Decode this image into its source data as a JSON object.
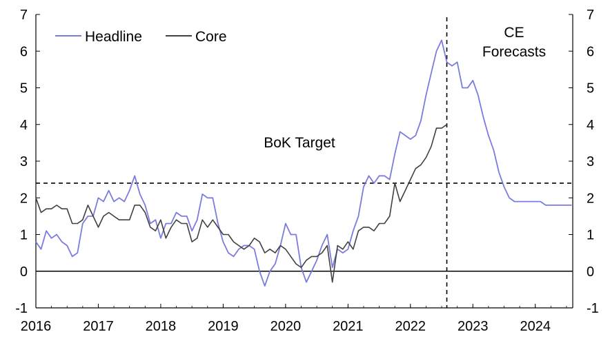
{
  "chart_data": {
    "type": "line",
    "xlim": [
      2016,
      2024.6
    ],
    "ylim": [
      -1,
      7
    ],
    "y_ticks": [
      -1,
      0,
      1,
      2,
      3,
      4,
      5,
      6,
      7
    ],
    "x_ticks": [
      "2016",
      "2017",
      "2018",
      "2019",
      "2020",
      "2021",
      "2022",
      "2023",
      "2024"
    ],
    "grid": false,
    "legend_position": "top-left",
    "colors": {
      "headline": "#7b7bdf",
      "core": "#404040",
      "axis": "#000000"
    },
    "series": [
      {
        "name": "Headline",
        "color": "#7b7bdf",
        "x": [
          2016.0,
          2016.083,
          2016.167,
          2016.25,
          2016.333,
          2016.417,
          2016.5,
          2016.583,
          2016.667,
          2016.75,
          2016.833,
          2016.917,
          2017.0,
          2017.083,
          2017.167,
          2017.25,
          2017.333,
          2017.417,
          2017.5,
          2017.583,
          2017.667,
          2017.75,
          2017.833,
          2017.917,
          2018.0,
          2018.083,
          2018.167,
          2018.25,
          2018.333,
          2018.417,
          2018.5,
          2018.583,
          2018.667,
          2018.75,
          2018.833,
          2018.917,
          2019.0,
          2019.083,
          2019.167,
          2019.25,
          2019.333,
          2019.417,
          2019.5,
          2019.583,
          2019.667,
          2019.75,
          2019.833,
          2019.917,
          2020.0,
          2020.083,
          2020.167,
          2020.25,
          2020.333,
          2020.417,
          2020.5,
          2020.583,
          2020.667,
          2020.75,
          2020.833,
          2020.917,
          2021.0,
          2021.083,
          2021.167,
          2021.25,
          2021.333,
          2021.417,
          2021.5,
          2021.583,
          2021.667,
          2021.75,
          2021.833,
          2021.917,
          2022.0,
          2022.083,
          2022.167,
          2022.25,
          2022.333,
          2022.417,
          2022.5,
          2022.583,
          2022.667,
          2022.75,
          2022.833,
          2022.917,
          2023.0,
          2023.083,
          2023.167,
          2023.25,
          2023.333,
          2023.417,
          2023.5,
          2023.583,
          2023.667,
          2023.75,
          2023.833,
          2023.917,
          2024.0,
          2024.083,
          2024.167,
          2024.25,
          2024.333,
          2024.417,
          2024.5,
          2024.583
        ],
        "values": [
          0.8,
          0.6,
          1.1,
          0.9,
          1.0,
          0.8,
          0.7,
          0.4,
          0.5,
          1.3,
          1.5,
          1.5,
          2.0,
          1.9,
          2.2,
          1.9,
          2.0,
          1.9,
          2.2,
          2.6,
          2.1,
          1.8,
          1.3,
          1.4,
          0.9,
          1.3,
          1.3,
          1.6,
          1.5,
          1.5,
          1.1,
          1.4,
          2.1,
          2.0,
          2.0,
          1.3,
          0.8,
          0.5,
          0.4,
          0.6,
          0.7,
          0.7,
          0.6,
          0.0,
          -0.4,
          0.0,
          0.2,
          0.7,
          1.3,
          1.0,
          1.0,
          0.1,
          -0.3,
          0.0,
          0.3,
          0.7,
          1.0,
          0.1,
          0.6,
          0.5,
          0.6,
          1.1,
          1.5,
          2.3,
          2.6,
          2.4,
          2.6,
          2.6,
          2.5,
          3.2,
          3.8,
          3.7,
          3.6,
          3.7,
          4.1,
          4.8,
          5.4,
          6.0,
          6.3,
          5.7,
          5.6,
          5.7,
          5.0,
          5.0,
          5.2,
          4.8,
          4.2,
          3.7,
          3.3,
          2.7,
          2.3,
          2.0,
          1.9,
          1.9,
          1.9,
          1.9,
          1.9,
          1.9,
          1.8,
          1.8,
          1.8,
          1.8,
          1.8,
          1.8
        ]
      },
      {
        "name": "Core",
        "color": "#404040",
        "x": [
          2016.0,
          2016.083,
          2016.167,
          2016.25,
          2016.333,
          2016.417,
          2016.5,
          2016.583,
          2016.667,
          2016.75,
          2016.833,
          2016.917,
          2017.0,
          2017.083,
          2017.167,
          2017.25,
          2017.333,
          2017.417,
          2017.5,
          2017.583,
          2017.667,
          2017.75,
          2017.833,
          2017.917,
          2018.0,
          2018.083,
          2018.167,
          2018.25,
          2018.333,
          2018.417,
          2018.5,
          2018.583,
          2018.667,
          2018.75,
          2018.833,
          2018.917,
          2019.0,
          2019.083,
          2019.167,
          2019.25,
          2019.333,
          2019.417,
          2019.5,
          2019.583,
          2019.667,
          2019.75,
          2019.833,
          2019.917,
          2020.0,
          2020.083,
          2020.167,
          2020.25,
          2020.333,
          2020.417,
          2020.5,
          2020.583,
          2020.667,
          2020.75,
          2020.833,
          2020.917,
          2021.0,
          2021.083,
          2021.167,
          2021.25,
          2021.333,
          2021.417,
          2021.5,
          2021.583,
          2021.667,
          2021.75,
          2021.833,
          2021.917,
          2022.0,
          2022.083,
          2022.167,
          2022.25,
          2022.333,
          2022.417,
          2022.5,
          2022.583
        ],
        "values": [
          2.0,
          1.6,
          1.7,
          1.7,
          1.8,
          1.7,
          1.7,
          1.3,
          1.3,
          1.4,
          1.8,
          1.5,
          1.2,
          1.5,
          1.6,
          1.5,
          1.4,
          1.4,
          1.4,
          1.8,
          1.8,
          1.6,
          1.2,
          1.1,
          1.4,
          0.9,
          1.2,
          1.4,
          1.3,
          1.3,
          0.8,
          0.9,
          1.4,
          1.2,
          1.4,
          1.2,
          1.0,
          1.0,
          0.8,
          0.7,
          0.6,
          0.7,
          0.9,
          0.8,
          0.5,
          0.6,
          0.5,
          0.7,
          0.6,
          0.4,
          0.2,
          0.1,
          0.3,
          0.4,
          0.4,
          0.5,
          0.7,
          -0.3,
          0.7,
          0.6,
          0.8,
          0.6,
          1.1,
          1.2,
          1.2,
          1.1,
          1.3,
          1.3,
          1.5,
          2.4,
          1.9,
          2.2,
          2.5,
          2.8,
          2.9,
          3.1,
          3.4,
          3.9,
          3.9,
          4.0
        ]
      }
    ],
    "reference_lines": [
      {
        "type": "horizontal",
        "y": 2.4,
        "style": "dashed",
        "label": "BoK Target"
      },
      {
        "type": "vertical",
        "x": 2022.583,
        "style": "dashed",
        "label": "CE Forecasts"
      },
      {
        "type": "horizontal",
        "y": 0,
        "style": "solid"
      }
    ],
    "annotations": {
      "bok_target": "BoK Target",
      "ce_forecasts_line1": "CE",
      "ce_forecasts_line2": "Forecasts"
    },
    "legend": {
      "headline": "Headline",
      "core": "Core"
    }
  }
}
